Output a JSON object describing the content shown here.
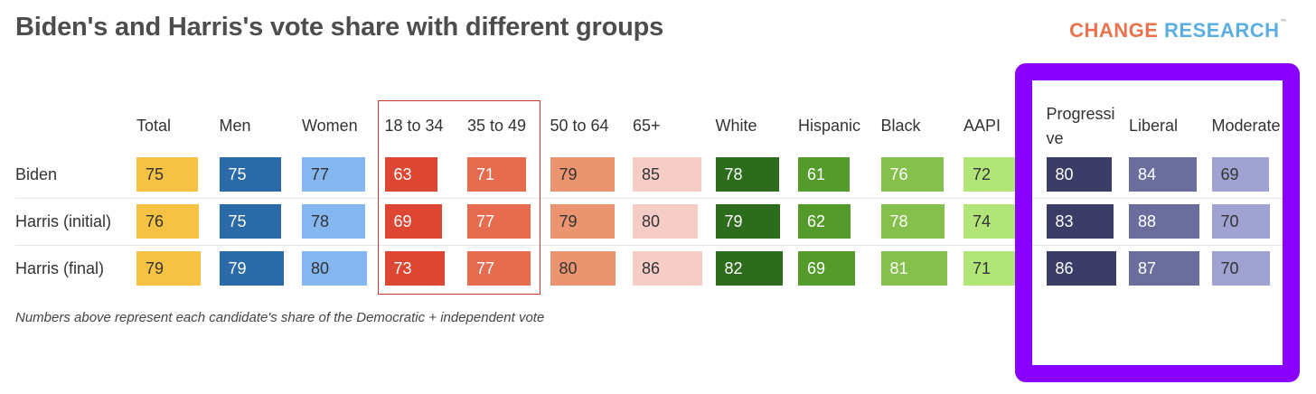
{
  "header": {
    "title": "Biden's and Harris's vote share with different groups",
    "logo_word1": "CHANGE",
    "logo_word2": "RESEARCH",
    "logo_tm": "™"
  },
  "chart_data": {
    "type": "table",
    "title": "Biden's and Harris's vote share with different groups",
    "columns": [
      {
        "label": "Total",
        "color": "#f6c244"
      },
      {
        "label": "Men",
        "color": "#2b6aa8"
      },
      {
        "label": "Women",
        "color": "#84b6f0"
      },
      {
        "label": "18 to 34",
        "color": "#dd4632"
      },
      {
        "label": "35 to 49",
        "color": "#e66c50"
      },
      {
        "label": "50 to 64",
        "color": "#ea9470"
      },
      {
        "label": "65+",
        "color": "#f6cdc6"
      },
      {
        "label": "White",
        "color": "#2d6b1d"
      },
      {
        "label": "Hispanic",
        "color": "#559b2c"
      },
      {
        "label": "Black",
        "color": "#85c04c"
      },
      {
        "label": "AAPI",
        "color": "#b2e577"
      },
      {
        "label": "Progressive",
        "color": "#3b3d67"
      },
      {
        "label": "Liberal",
        "color": "#6b6e9c"
      },
      {
        "label": "Moderate",
        "color": "#a0a3d2"
      }
    ],
    "rows": [
      {
        "label": "Biden",
        "values": [
          75,
          75,
          77,
          63,
          71,
          79,
          85,
          78,
          61,
          76,
          72,
          80,
          84,
          69
        ]
      },
      {
        "label": "Harris (initial)",
        "values": [
          76,
          75,
          78,
          69,
          77,
          79,
          80,
          79,
          62,
          78,
          74,
          83,
          88,
          70
        ]
      },
      {
        "label": "Harris (final)",
        "values": [
          79,
          79,
          80,
          73,
          77,
          80,
          86,
          82,
          69,
          81,
          71,
          86,
          87,
          70
        ]
      }
    ],
    "value_range": [
      60,
      90
    ],
    "note": "Numbers above represent each candidate's share of the Democratic + independent vote"
  }
}
